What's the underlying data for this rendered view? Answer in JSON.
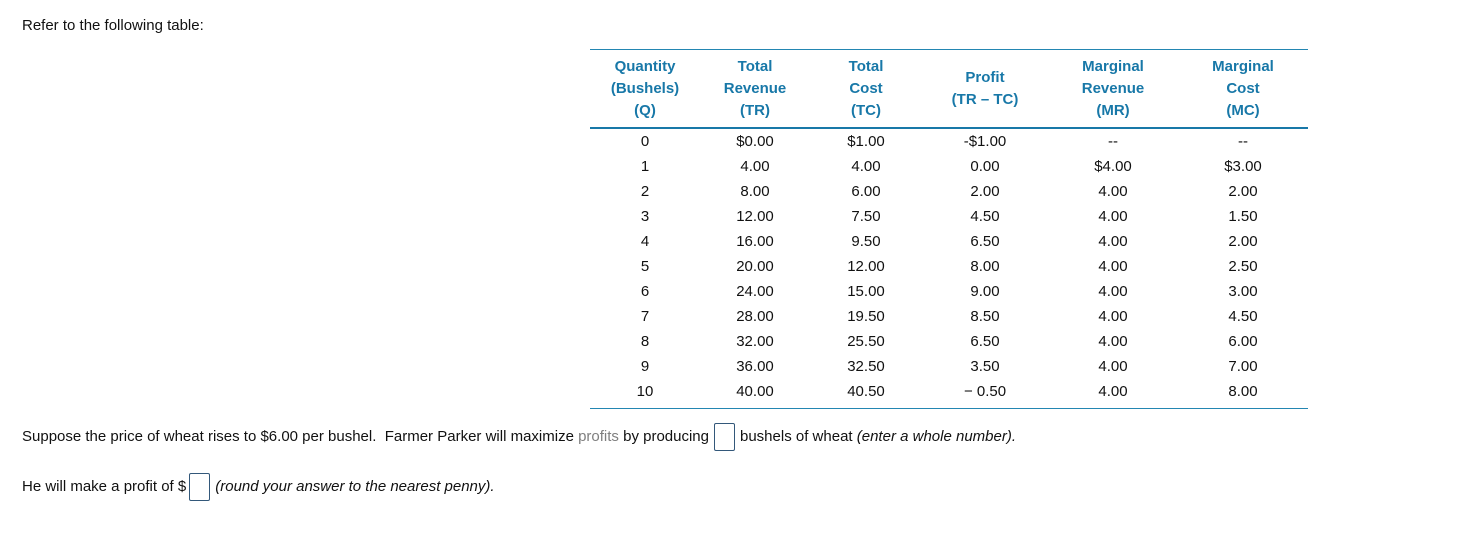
{
  "page": {
    "intro": "Refer to the following table:"
  },
  "colors": {
    "header_blue": "#1878a8",
    "table_line_blue": "#2386b2",
    "glossary_term_gray": "#7f7f7f",
    "input_border_navy": "#33587a",
    "body_text": "#111111"
  },
  "table": {
    "columns": [
      {
        "id": "quantity",
        "lines": [
          "Quantity",
          "(Bushels)",
          "(Q)"
        ]
      },
      {
        "id": "total_revenue",
        "lines": [
          "Total",
          "Revenue",
          "(TR)"
        ]
      },
      {
        "id": "total_cost",
        "lines": [
          "Total",
          "Cost",
          "(TC)"
        ]
      },
      {
        "id": "profit",
        "lines": [
          "Profit",
          "(TR – TC)"
        ]
      },
      {
        "id": "marginal_revenue",
        "lines": [
          "Marginal",
          "Revenue",
          "(MR)"
        ]
      },
      {
        "id": "marginal_cost",
        "lines": [
          "Marginal",
          "Cost",
          "(MC)"
        ]
      }
    ],
    "rows": [
      [
        "0",
        "$0.00",
        "$1.00",
        "-$1.00",
        "--",
        "--"
      ],
      [
        "1",
        "4.00",
        "4.00",
        "0.00",
        "$4.00",
        "$3.00"
      ],
      [
        "2",
        "8.00",
        "6.00",
        "2.00",
        "4.00",
        "2.00"
      ],
      [
        "3",
        "12.00",
        "7.50",
        "4.50",
        "4.00",
        "1.50"
      ],
      [
        "4",
        "16.00",
        "9.50",
        "6.50",
        "4.00",
        "2.00"
      ],
      [
        "5",
        "20.00",
        "12.00",
        "8.00",
        "4.00",
        "2.50"
      ],
      [
        "6",
        "24.00",
        "15.00",
        "9.00",
        "4.00",
        "3.00"
      ],
      [
        "7",
        "28.00",
        "19.50",
        "8.50",
        "4.00",
        "4.50"
      ],
      [
        "8",
        "32.00",
        "25.50",
        "6.50",
        "4.00",
        "6.00"
      ],
      [
        "9",
        "36.00",
        "32.50",
        "3.50",
        "4.00",
        "7.00"
      ],
      [
        "10",
        "40.00",
        "40.50",
        "− 0.50",
        "4.00",
        "8.00"
      ]
    ]
  },
  "question1": {
    "part1": "Suppose the price of wheat rises to $6.00 per bushel.  Farmer Parker will maximize ",
    "term": "profits",
    "part2": " by producing",
    "input_value": "",
    "part3": "bushels of wheat ",
    "hint": "(enter a whole number)."
  },
  "question2": {
    "part1": "He will make a profit of $",
    "input_value": "",
    "hint": "(round your answer to the nearest penny)."
  }
}
